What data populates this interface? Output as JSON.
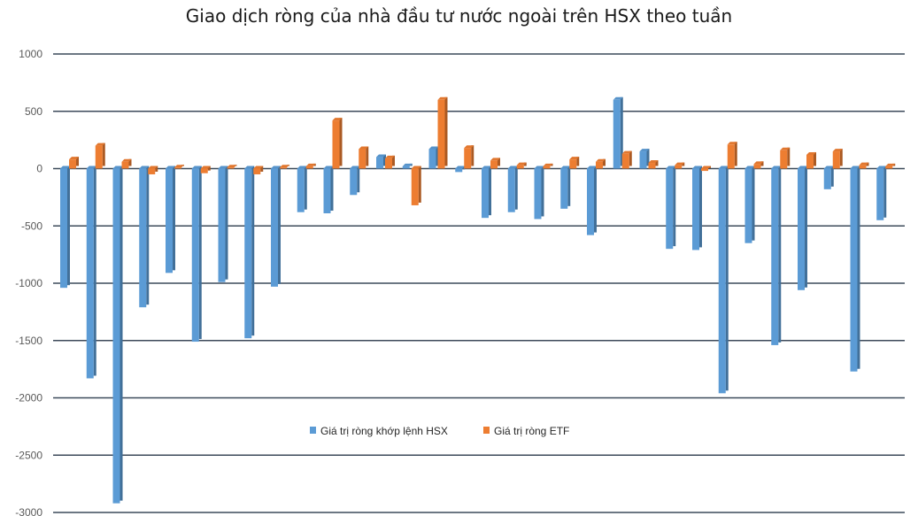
{
  "chart_data": {
    "type": "bar",
    "title": "Giao dịch ròng của nhà đầu tư nước ngoài trên HSX theo tuần",
    "xlabel": "",
    "ylabel": "",
    "ylim": [
      -3000,
      1000
    ],
    "yticks": [
      1000,
      500,
      0,
      -500,
      -1000,
      -1500,
      -2000,
      -2500,
      -3000
    ],
    "grid": true,
    "legend_position": "center",
    "series": [
      {
        "name": "Giá trị ròng khớp lệnh HSX",
        "color": "#5b9bd5",
        "values": [
          -1040,
          -1830,
          -2920,
          -1210,
          -910,
          -1510,
          -990,
          -1480,
          -1030,
          -380,
          -390,
          -230,
          100,
          20,
          170,
          -30,
          -430,
          -380,
          -440,
          -350,
          -580,
          600,
          150,
          -700,
          -710,
          -1960,
          -650,
          -1540,
          -1060,
          -180,
          -1770,
          -450
        ]
      },
      {
        "name": "Giá trị ròng ETF",
        "color": "#ed7d31",
        "values": [
          80,
          200,
          60,
          -50,
          10,
          -40,
          10,
          -50,
          10,
          20,
          420,
          170,
          90,
          -320,
          600,
          180,
          70,
          30,
          20,
          80,
          60,
          130,
          50,
          30,
          -20,
          210,
          40,
          160,
          120,
          150,
          30,
          20
        ]
      }
    ]
  }
}
